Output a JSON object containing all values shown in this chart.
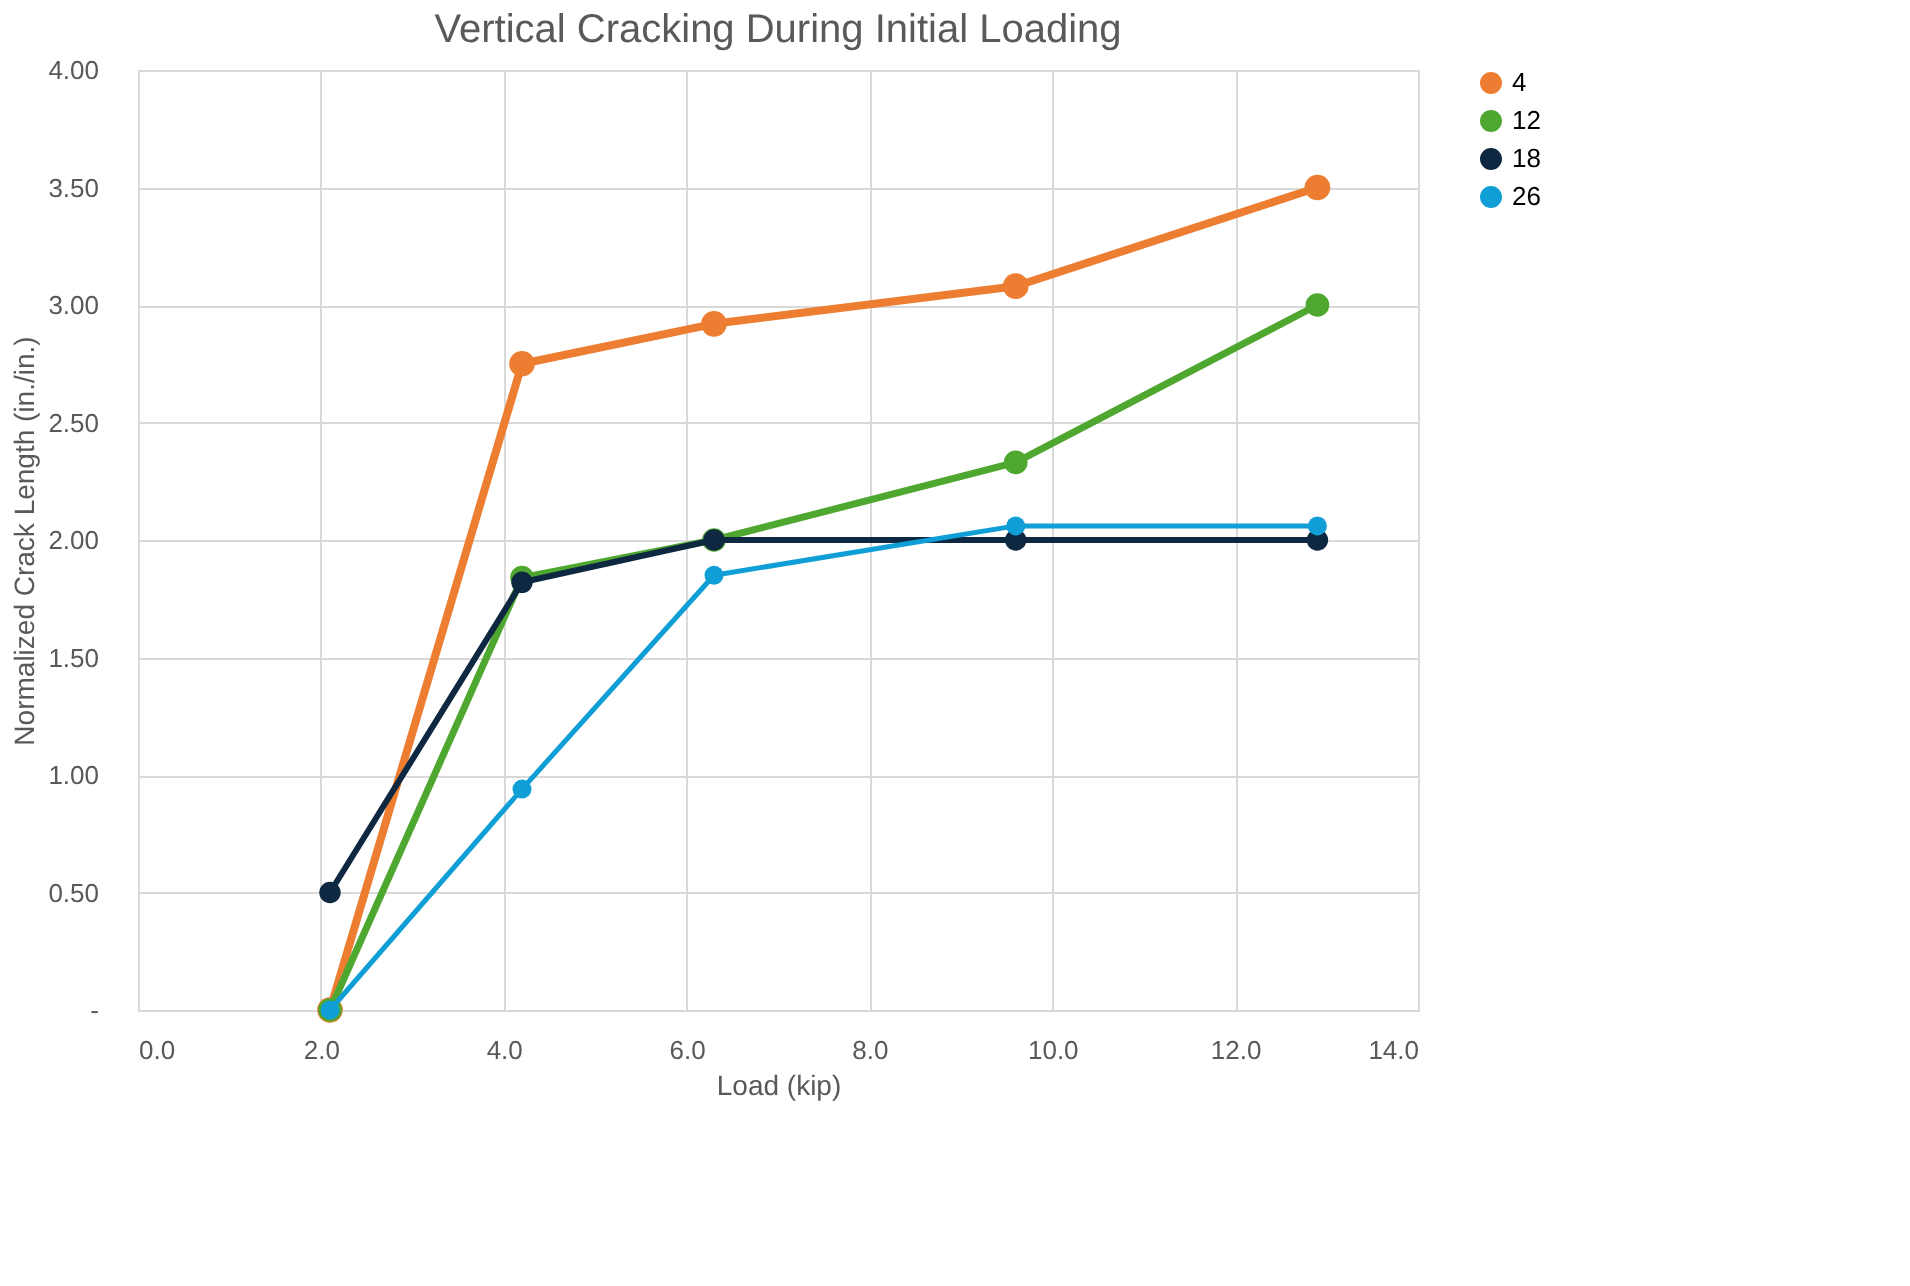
{
  "chart_data": {
    "type": "line",
    "title": "Vertical Cracking During Initial Loading",
    "xlabel": "Load (kip)",
    "ylabel": "Normalized Crack Length (in./in.)",
    "x": [
      2.1,
      4.2,
      6.3,
      9.6,
      12.9
    ],
    "series": [
      {
        "name": "4",
        "color": "#ed7d31",
        "values": [
          0,
          2.75,
          2.92,
          3.08,
          3.5
        ]
      },
      {
        "name": "12",
        "color": "#4ea72e",
        "values": [
          0,
          1.84,
          2.0,
          2.33,
          3.0
        ]
      },
      {
        "name": "18",
        "color": "#0e2841",
        "values": [
          0.5,
          1.82,
          2.0,
          2.0,
          2.0
        ]
      },
      {
        "name": "26",
        "color": "#0f9ed5",
        "values": [
          0,
          0.94,
          1.85,
          2.06,
          2.06
        ]
      }
    ],
    "xlim": [
      0,
      14
    ],
    "xticks": [
      {
        "value": 0,
        "label": "0.0"
      },
      {
        "value": 2,
        "label": "2.0"
      },
      {
        "value": 4,
        "label": "4.0"
      },
      {
        "value": 6,
        "label": "6.0"
      },
      {
        "value": 8,
        "label": "8.0"
      },
      {
        "value": 10,
        "label": "10.0"
      },
      {
        "value": 12,
        "label": "12.0"
      },
      {
        "value": 14,
        "label": "14.0"
      }
    ],
    "ylim": [
      0,
      4
    ],
    "yticks": [
      {
        "value": 0,
        "label": "-"
      },
      {
        "value": 0.5,
        "label": "0.50"
      },
      {
        "value": 1,
        "label": "1.00"
      },
      {
        "value": 1.5,
        "label": "1.50"
      },
      {
        "value": 2,
        "label": "2.00"
      },
      {
        "value": 2.5,
        "label": "2.50"
      },
      {
        "value": 3,
        "label": "3.00"
      },
      {
        "value": 3.5,
        "label": "3.50"
      },
      {
        "value": 4,
        "label": "4.00"
      }
    ],
    "grid": true,
    "legend": "right",
    "marker": "circle",
    "line_style": "solid"
  }
}
